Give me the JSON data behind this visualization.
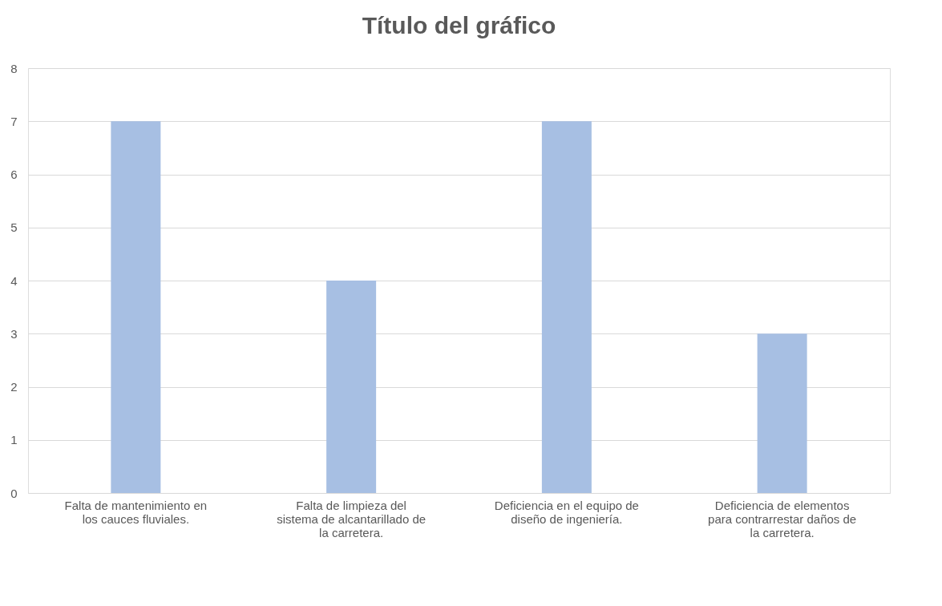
{
  "chart_data": {
    "type": "bar",
    "title": "Título del gráfico",
    "categories": [
      "Falta de mantenimiento en los cauces fluviales.",
      "Falta de limpieza del sistema de alcantarillado de la carretera.",
      "Deficiencia en el equipo de diseño de ingeniería.",
      "Deficiencia de elementos para contrarrestar daños de la carretera."
    ],
    "values": [
      7,
      4,
      7,
      3
    ],
    "color": "#a7bfe3",
    "ylim": [
      0,
      8
    ],
    "yticks": [
      0,
      1,
      2,
      3,
      4,
      5,
      6,
      7,
      8
    ],
    "grid": "y"
  }
}
